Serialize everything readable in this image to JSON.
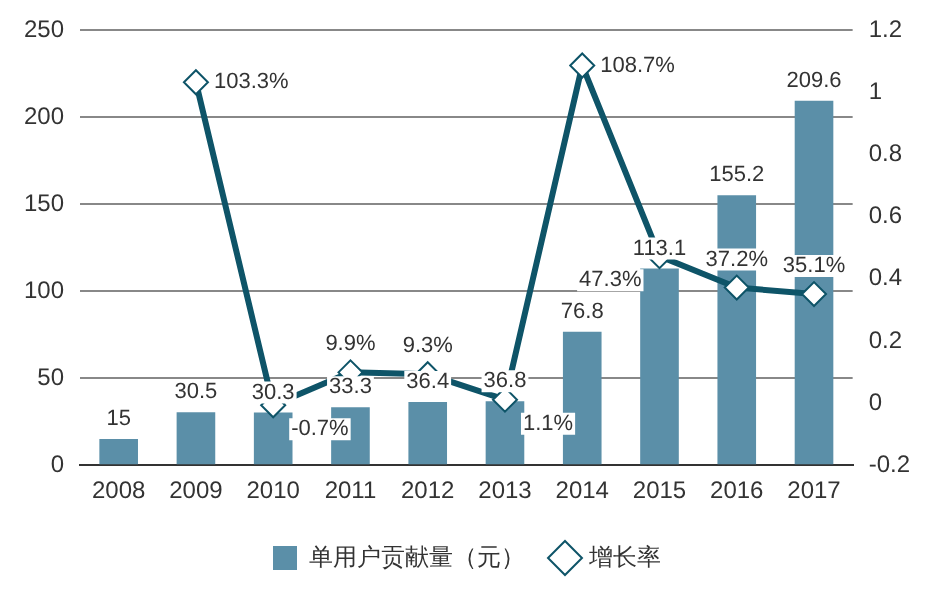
{
  "chart_data": {
    "type": "bar",
    "categories": [
      "2008",
      "2009",
      "2010",
      "2011",
      "2012",
      "2013",
      "2014",
      "2015",
      "2016",
      "2017"
    ],
    "series": [
      {
        "name": "单用户贡献量（元）",
        "color": "#5b8fa8",
        "values": [
          15,
          30.5,
          30.3,
          33.3,
          36.4,
          36.8,
          76.8,
          113.1,
          155.2,
          209.6
        ],
        "data_labels": true
      },
      {
        "name": "增长率",
        "type": "line",
        "axis": "y2",
        "color": "#0e5468",
        "marker": "diamond",
        "values": [
          null,
          1.033,
          -0.007,
          0.099,
          0.093,
          0.011,
          1.087,
          0.473,
          0.372,
          0.351
        ],
        "value_labels": [
          null,
          "103.3%",
          "-0.7%",
          "9.9%",
          "9.3%",
          "1.1%",
          "108.7%",
          "47.3%",
          "37.2%",
          "35.1%"
        ]
      }
    ],
    "ylim": [
      0,
      250
    ],
    "yticks": [
      0,
      50,
      100,
      150,
      200,
      250
    ],
    "y2lim": [
      -0.2,
      1.2
    ],
    "y2ticks": [
      -0.2,
      0,
      0.2,
      0.4,
      0.6,
      0.8,
      1,
      1.2
    ],
    "grid": "y",
    "legend": "bottom"
  }
}
